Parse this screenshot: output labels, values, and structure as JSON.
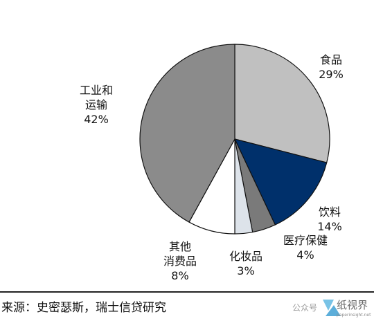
{
  "chart_data": {
    "type": "pie",
    "start": "12 o'clock",
    "direction": "clockwise",
    "slices": [
      {
        "label": "食品",
        "lines": [
          "食品"
        ],
        "value": 29,
        "value_label": "29%",
        "color": "#c0c0c0"
      },
      {
        "label": "饮料",
        "lines": [
          "饮料"
        ],
        "value": 14,
        "value_label": "14%",
        "color": "#00306b"
      },
      {
        "label": "医疗保健",
        "lines": [
          "医疗保健"
        ],
        "value": 4,
        "value_label": "4%",
        "color": "#7a7a7a"
      },
      {
        "label": "化妆品",
        "lines": [
          "化妆品"
        ],
        "value": 3,
        "value_label": "3%",
        "color": "#dde3ea"
      },
      {
        "label": "其他消费品",
        "lines": [
          "其他",
          "消费品"
        ],
        "value": 8,
        "value_label": "8%",
        "color": "#ffffff"
      },
      {
        "label": "工业和运输",
        "lines": [
          "工业和",
          "运输"
        ],
        "value": 42,
        "value_label": "42%",
        "color": "#8b8b8b"
      }
    ]
  },
  "footer": {
    "source": "来源：史密瑟斯，瑞士信贷研究",
    "watermark_text": "公众号",
    "watermark_logo": "纸视界",
    "watermark_url": "paperinsight.net"
  },
  "icons": {
    "watermark_logo": "paper-insight-logo-icon"
  }
}
